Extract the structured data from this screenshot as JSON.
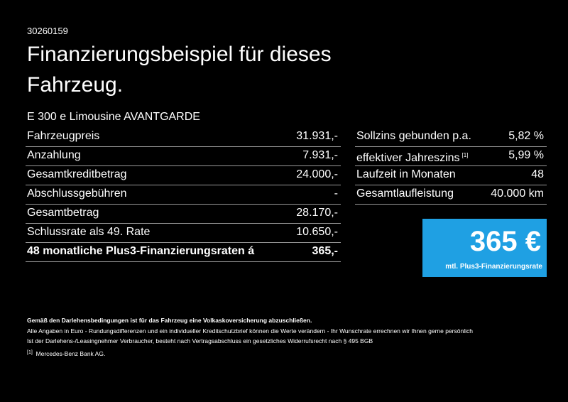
{
  "header": {
    "id": "30260159",
    "title_lines": [
      "Finanzierungsbeispiel für dieses",
      "Fahrzeug."
    ],
    "model": "E 300 e Limousine AVANTGARDE"
  },
  "left_table": {
    "rows": [
      [
        "Fahrzeugpreis",
        "31.931,-"
      ],
      [
        "Anzahlung",
        "7.931,-"
      ],
      [
        "Gesamtkreditbetrag",
        "24.000,-"
      ],
      [
        "Abschlussgebühren",
        "-"
      ],
      [
        "Gesamtbetrag",
        "28.170,-"
      ],
      [
        "Schlussrate als 49. Rate",
        "10.650,-"
      ],
      [
        "48 monatliche Plus3-Finanzierungsraten á",
        "365,-"
      ]
    ]
  },
  "right_table": {
    "rows": [
      {
        "label": "Sollzins gebunden p.a.",
        "value": "5,82 %"
      },
      {
        "label": "effektiver Jahreszins",
        "marker": "[1]",
        "value": "5,99 %"
      },
      {
        "label": "Laufzeit in Monaten",
        "value": "48"
      },
      {
        "label": "Gesamtlaufleistung",
        "value": "40.000 km"
      }
    ]
  },
  "rate_box": {
    "amount": "365 €",
    "caption": "mtl. Plus3-Finanzierungsrate"
  },
  "footer": {
    "notice": "Gemäß den Darlehensbedingungen ist für das Fahrzeug eine Volkaskoversicherung abzuschließen.",
    "lines": [
      "Alle Angaben in Euro - Rundungsdifferenzen und ein individueller Kreditschutzbrief können die Werte verändern - Ihr Wunschrate errechnen wir Ihnen gerne persönlich",
      "Ist der Darlehens-/Leasingnehmer Verbraucher, besteht nach Vertragsabschluss ein gesetzliches Widerrufsrecht nach § 495 BGB"
    ],
    "footnote": {
      "marker": "[1]",
      "text": "Mercedes-Benz Bank AG."
    }
  }
}
